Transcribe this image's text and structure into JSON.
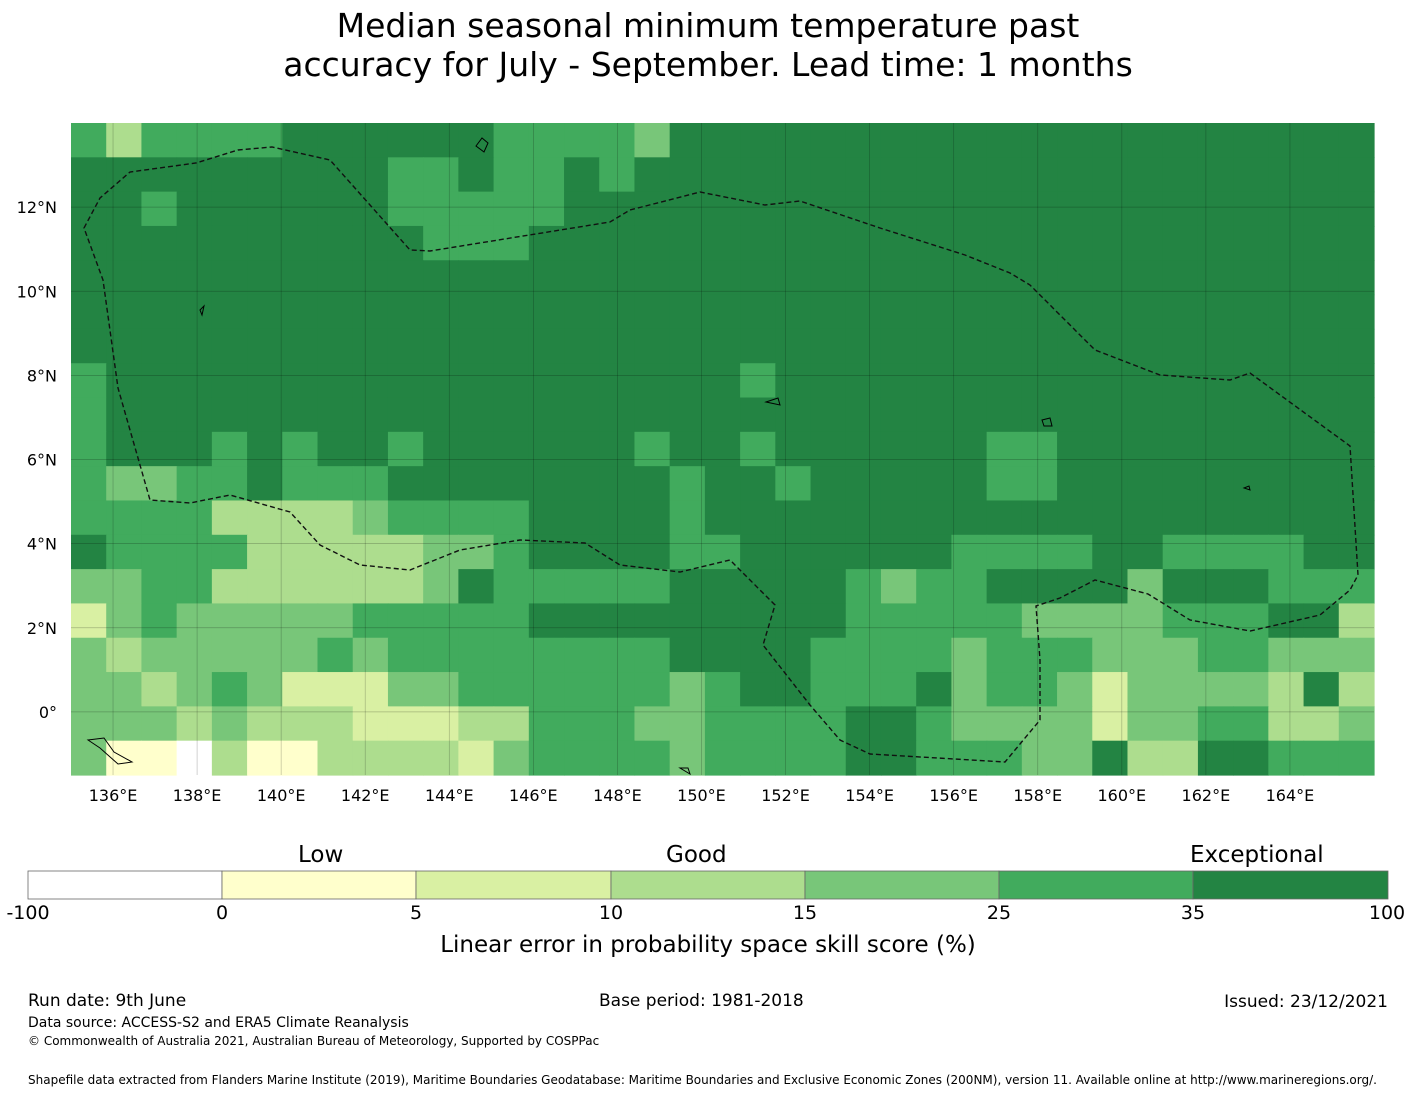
{
  "title": {
    "line1": "Median seasonal minimum temperature past",
    "line2": "accuracy for July - September. Lead time: 1 months"
  },
  "map": {
    "lon_range": [
      135.0,
      166.0
    ],
    "lat_range": [
      -1.5,
      14.0
    ],
    "x_ticks": [
      "136°E",
      "138°E",
      "140°E",
      "142°E",
      "144°E",
      "146°E",
      "148°E",
      "150°E",
      "152°E",
      "154°E",
      "156°E",
      "158°E",
      "160°E",
      "162°E",
      "164°E"
    ],
    "y_ticks": [
      "12°N",
      "10°N",
      "8°N",
      "6°N",
      "4°N",
      "2°N",
      "0°"
    ],
    "grid": true,
    "boundary": "dashed EEZ outline",
    "cell_classes_legend": "0=no data/white,1=0-5,2=5-10,3=10-15,4=15-25,5=25-35,6=35-100"
  },
  "colorbar": {
    "categories": [
      "Low",
      "Good",
      "Exceptional"
    ],
    "ticks": [
      "-100",
      "0",
      "5",
      "10",
      "15",
      "25",
      "35",
      "100"
    ],
    "colors": [
      "#ffffff",
      "#ffffcc",
      "#d9f0a3",
      "#addd8e",
      "#78c679",
      "#41ab5d",
      "#238443"
    ],
    "label": "Linear error in probability space skill score (%)"
  },
  "footer": {
    "run_date": "Run date: 9th June",
    "base_period": "Base period: 1981-2018",
    "issued": "Issued: 23/12/2021",
    "data_source": "Data source: ACCESS-S2 and ERA5 Climate Reanalysis",
    "copyright": "© Commonwealth of Australia 2021, Australian Bureau of Meteorology, Supported by COSPPac",
    "shapefile": "Shapefile data extracted from Flanders Marine Institute (2019), Maritime Boundaries Geodatabase: Maritime Boundaries and Exclusive Economic Zones (200NM), version 11. Available online at http://www.marineregions.org/."
  }
}
